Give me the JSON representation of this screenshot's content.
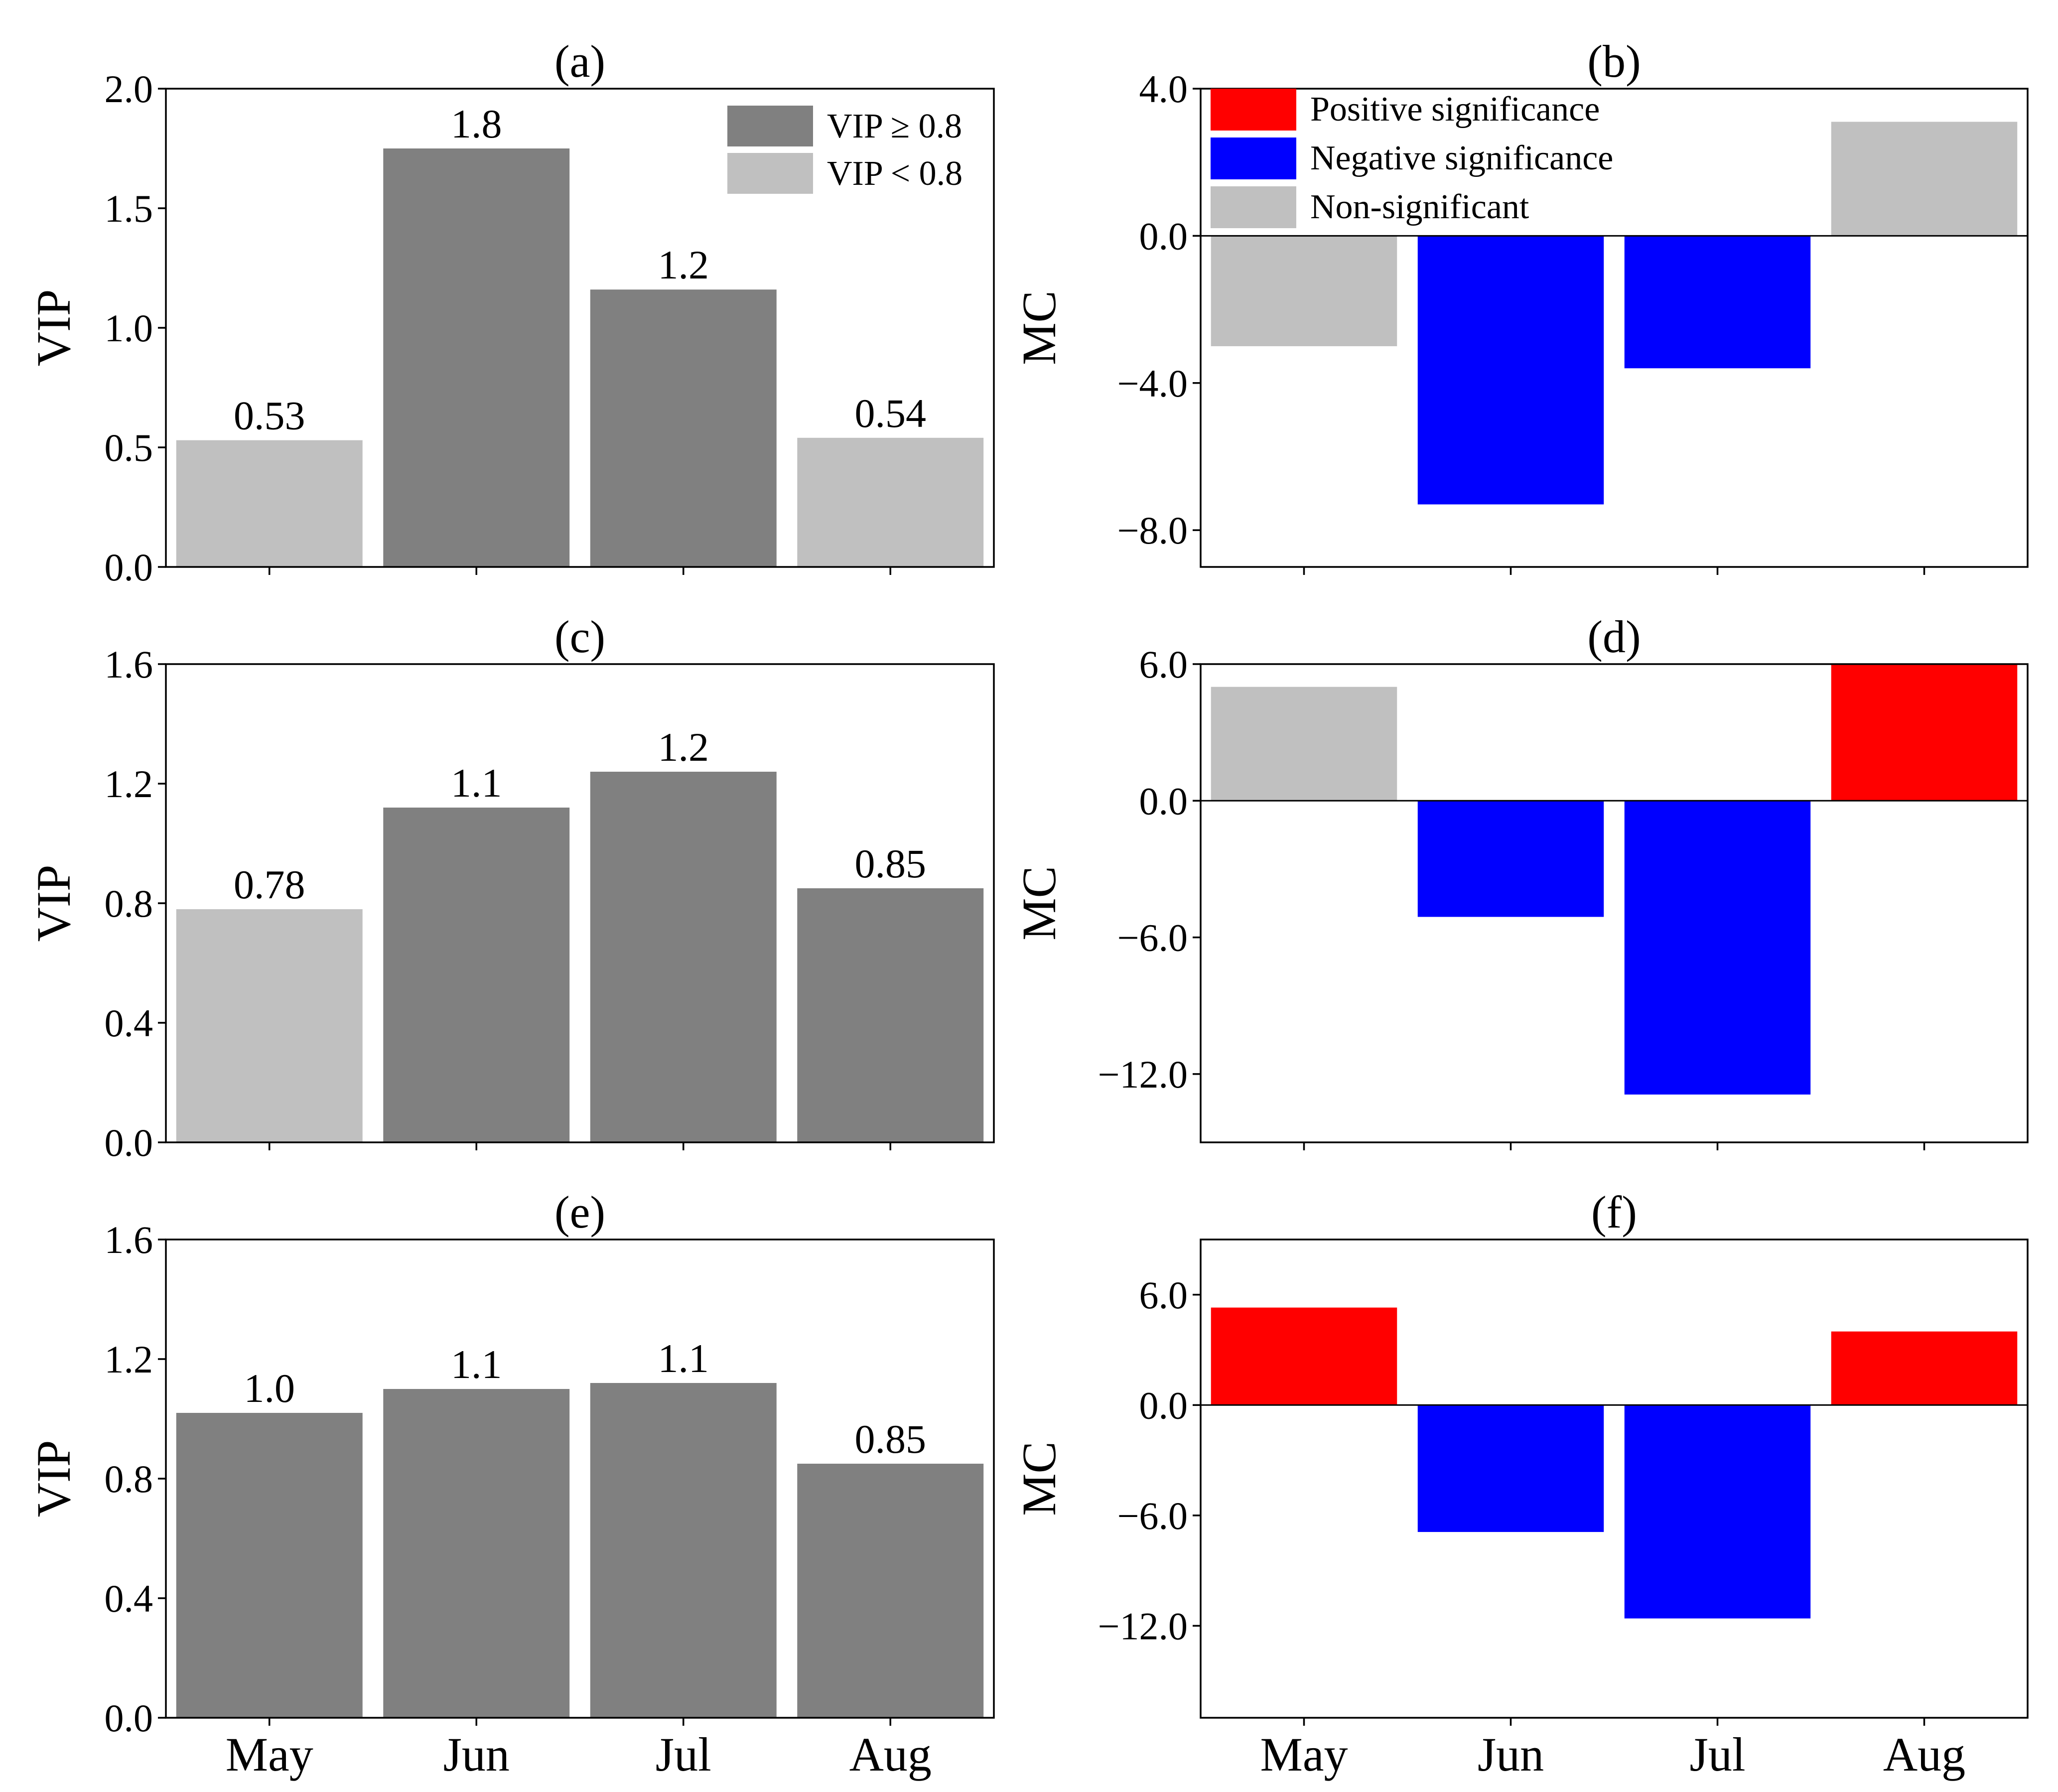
{
  "colors": {
    "significant_vip": "#808080",
    "nonsignificant": "#c0c0c0",
    "positive": "#ff0000",
    "negative": "#0000ff",
    "axis": "#000000"
  },
  "legend_vip": [
    {
      "label": "VIP ≥ 0.8",
      "color_key": "significant_vip"
    },
    {
      "label": "VIP < 0.8",
      "color_key": "nonsignificant"
    }
  ],
  "legend_mc": [
    {
      "label": "Positive significance",
      "color_key": "positive"
    },
    {
      "label": "Negative significance",
      "color_key": "negative"
    },
    {
      "label": "Non-significant",
      "color_key": "nonsignificant"
    }
  ],
  "chart_data": [
    {
      "panel": "(a)",
      "type": "bar",
      "title": "(a)",
      "ylabel": "VIP",
      "categories": [
        "May",
        "Jun",
        "Jul",
        "Aug"
      ],
      "values": [
        0.53,
        1.75,
        1.16,
        0.54
      ],
      "value_labels": [
        "0.53",
        "1.8",
        "1.2",
        "0.54"
      ],
      "bar_colors": [
        "nonsignificant",
        "significant_vip",
        "significant_vip",
        "nonsignificant"
      ],
      "ylim": [
        0,
        2.0
      ],
      "yticks": [
        0,
        0.5,
        1.0,
        1.5,
        2.0
      ],
      "ytick_labels": [
        "0.0",
        "0.5",
        "1.0",
        "1.5",
        "2.0"
      ],
      "show_xticks": false,
      "legend": "vip",
      "legend_position": "top-right"
    },
    {
      "panel": "(b)",
      "type": "bar",
      "title": "(b)",
      "ylabel": "MC",
      "categories": [
        "May",
        "Jun",
        "Jul",
        "Aug"
      ],
      "values": [
        -3.0,
        -7.3,
        -3.6,
        3.1
      ],
      "bar_colors": [
        "nonsignificant",
        "negative",
        "negative",
        "nonsignificant"
      ],
      "ylim": [
        -9.0,
        4.0
      ],
      "yticks": [
        4,
        0,
        -4,
        -8
      ],
      "ytick_labels": [
        "4.0",
        "0.0",
        "−4.0",
        "−8.0"
      ],
      "zero_line": true,
      "show_xticks": false,
      "legend": "mc",
      "legend_position": "top-left"
    },
    {
      "panel": "(c)",
      "type": "bar",
      "title": "(c)",
      "ylabel": "VIP",
      "categories": [
        "May",
        "Jun",
        "Jul",
        "Aug"
      ],
      "values": [
        0.78,
        1.12,
        1.24,
        0.85
      ],
      "value_labels": [
        "0.78",
        "1.1",
        "1.2",
        "0.85"
      ],
      "bar_colors": [
        "nonsignificant",
        "significant_vip",
        "significant_vip",
        "significant_vip"
      ],
      "ylim": [
        0,
        1.6
      ],
      "yticks": [
        0,
        0.4,
        0.8,
        1.2,
        1.6
      ],
      "ytick_labels": [
        "0.0",
        "0.4",
        "0.8",
        "1.2",
        "1.6"
      ],
      "show_xticks": false
    },
    {
      "panel": "(d)",
      "type": "bar",
      "title": "(d)",
      "ylabel": "MC",
      "categories": [
        "May",
        "Jun",
        "Jul",
        "Aug"
      ],
      "values": [
        5.0,
        -5.1,
        -12.9,
        6.0
      ],
      "bar_colors": [
        "nonsignificant",
        "negative",
        "negative",
        "positive"
      ],
      "ylim": [
        -15.0,
        6.0
      ],
      "yticks": [
        6,
        0,
        -6,
        -12
      ],
      "ytick_labels": [
        "6.0",
        "0.0",
        "−6.0",
        "−12.0"
      ],
      "zero_line": true,
      "show_xticks": false
    },
    {
      "panel": "(e)",
      "type": "bar",
      "title": "(e)",
      "ylabel": "VIP",
      "categories": [
        "May",
        "Jun",
        "Jul",
        "Aug"
      ],
      "values": [
        1.02,
        1.1,
        1.12,
        0.85
      ],
      "value_labels": [
        "1.0",
        "1.1",
        "1.1",
        "0.85"
      ],
      "bar_colors": [
        "significant_vip",
        "significant_vip",
        "significant_vip",
        "significant_vip"
      ],
      "ylim": [
        0,
        1.6
      ],
      "yticks": [
        0,
        0.4,
        0.8,
        1.2,
        1.6
      ],
      "ytick_labels": [
        "0.0",
        "0.4",
        "0.8",
        "1.2",
        "1.6"
      ],
      "show_xticks": true
    },
    {
      "panel": "(f)",
      "type": "bar",
      "title": "(f)",
      "ylabel": "MC",
      "categories": [
        "May",
        "Jun",
        "Jul",
        "Aug"
      ],
      "values": [
        5.3,
        -6.9,
        -11.6,
        4.0
      ],
      "bar_colors": [
        "positive",
        "negative",
        "negative",
        "positive"
      ],
      "ylim": [
        -17.0,
        9.0
      ],
      "yticks": [
        6,
        0,
        -6,
        -12
      ],
      "ytick_labels": [
        "6.0",
        "0.0",
        "−6.0",
        "−12.0"
      ],
      "zero_line": true,
      "show_xticks": true
    }
  ]
}
